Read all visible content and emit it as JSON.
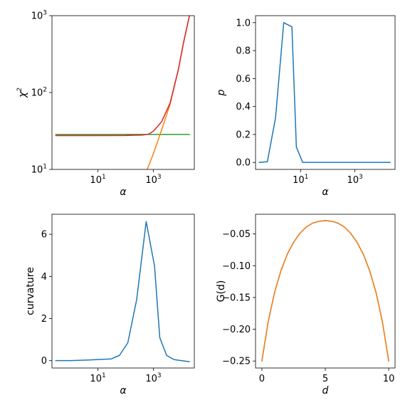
{
  "chart_data": [
    {
      "type": "line",
      "xscale": "log",
      "yscale": "log",
      "xlabel": "α",
      "ylabel": "χ",
      "ylabel_sup": "2",
      "xlim": [
        0.22,
        30000
      ],
      "ylim": [
        10,
        1000
      ],
      "xticks": [
        {
          "v": 10,
          "base": "10",
          "exp": "1"
        },
        {
          "v": 1000,
          "base": "10",
          "exp": "3"
        }
      ],
      "yticks": [
        {
          "v": 10,
          "base": "10",
          "exp": "1"
        },
        {
          "v": 100,
          "base": "10",
          "exp": "2"
        },
        {
          "v": 1000,
          "base": "10",
          "exp": "3"
        }
      ],
      "series": [
        {
          "color": "#2ca02c",
          "x": [
            0.3,
            1,
            10,
            100,
            1000,
            10000,
            20000
          ],
          "y": [
            28.5,
            28.5,
            28.5,
            28.5,
            28.5,
            28.5,
            28.5
          ]
        },
        {
          "color": "#ff7f0e",
          "x": [
            600,
            1000,
            2000,
            4000,
            8000,
            12000,
            20000
          ],
          "y": [
            10,
            16,
            33,
            70,
            200,
            430,
            1000
          ]
        },
        {
          "color": "#d62728",
          "x": [
            0.3,
            1,
            10,
            100,
            200,
            400,
            700,
            1000,
            1500,
            2000,
            4000,
            8000,
            12000,
            20000
          ],
          "y": [
            27.5,
            27.5,
            27.5,
            27.6,
            27.8,
            28,
            28.9,
            31.5,
            37,
            42,
            73,
            200,
            430,
            1000
          ]
        }
      ]
    },
    {
      "type": "line",
      "xscale": "log",
      "yscale": "linear",
      "xlabel": "α",
      "ylabel": "p",
      "xlim": [
        0.22,
        30000
      ],
      "ylim": [
        -0.05,
        1.05
      ],
      "xticks": [
        {
          "v": 10,
          "base": "10",
          "exp": "1"
        },
        {
          "v": 1000,
          "base": "10",
          "exp": "3"
        }
      ],
      "yticks": [
        {
          "v": 0.0,
          "label": "0.0"
        },
        {
          "v": 0.2,
          "label": "0.2"
        },
        {
          "v": 0.4,
          "label": "0.4"
        },
        {
          "v": 0.6,
          "label": "0.6"
        },
        {
          "v": 0.8,
          "label": "0.8"
        },
        {
          "v": 1.0,
          "label": "1.0"
        }
      ],
      "series": [
        {
          "color": "#1f77b4",
          "x": [
            0.3,
            0.6,
            1.2,
            2.4,
            4.8,
            7,
            12,
            100,
            1000,
            20000
          ],
          "y": [
            0.0,
            0.005,
            0.32,
            1.0,
            0.97,
            0.11,
            0.0,
            0.0,
            0.0,
            0.0
          ]
        }
      ]
    },
    {
      "type": "line",
      "xscale": "log",
      "yscale": "linear",
      "xlabel": "α",
      "ylabel": "curvature",
      "xlim": [
        0.22,
        30000
      ],
      "ylim": [
        -0.35,
        6.95
      ],
      "xticks": [
        {
          "v": 10,
          "base": "10",
          "exp": "1"
        },
        {
          "v": 1000,
          "base": "10",
          "exp": "3"
        }
      ],
      "yticks": [
        {
          "v": 0,
          "label": "0"
        },
        {
          "v": 2,
          "label": "2"
        },
        {
          "v": 4,
          "label": "4"
        },
        {
          "v": 6,
          "label": "6"
        }
      ],
      "series": [
        {
          "color": "#1f77b4",
          "x": [
            0.3,
            1,
            3,
            10,
            30,
            60,
            120,
            250,
            550,
            1100,
            1700,
            3000,
            5500,
            10000,
            20000
          ],
          "y": [
            0.0,
            0.0,
            0.02,
            0.05,
            0.08,
            0.25,
            0.85,
            2.9,
            6.6,
            4.5,
            1.1,
            0.25,
            0.05,
            0.0,
            -0.05
          ]
        }
      ]
    },
    {
      "type": "line",
      "xscale": "linear",
      "yscale": "linear",
      "xlabel": "d",
      "ylabel": "G(d)",
      "xlim": [
        -0.5,
        10.5
      ],
      "ylim": [
        -0.261,
        -0.019
      ],
      "xticks": [
        {
          "v": 0,
          "label": "0"
        },
        {
          "v": 5,
          "label": "5"
        },
        {
          "v": 10,
          "label": "10"
        }
      ],
      "yticks": [
        {
          "v": -0.05,
          "label": "−0.05"
        },
        {
          "v": -0.1,
          "label": "−0.10"
        },
        {
          "v": -0.15,
          "label": "−0.15"
        },
        {
          "v": -0.2,
          "label": "−0.20"
        },
        {
          "v": -0.25,
          "label": "−0.25"
        }
      ],
      "series": [
        {
          "color": "#1f77b4",
          "x": [
            0,
            0.5,
            1,
            1.5,
            2,
            2.5,
            3,
            3.5,
            4,
            4.5,
            5,
            5.5,
            6,
            6.5,
            7,
            7.5,
            8,
            8.5,
            9,
            9.5,
            10
          ],
          "y": [
            -0.25,
            -0.188,
            -0.142,
            -0.108,
            -0.082,
            -0.063,
            -0.049,
            -0.039,
            -0.033,
            -0.03,
            -0.029,
            -0.03,
            -0.033,
            -0.039,
            -0.049,
            -0.063,
            -0.082,
            -0.108,
            -0.142,
            -0.188,
            -0.25
          ]
        },
        {
          "color": "#ff7f0e",
          "x": [
            0,
            0.5,
            1,
            1.5,
            2,
            2.5,
            3,
            3.5,
            4,
            4.5,
            5,
            5.5,
            6,
            6.5,
            7,
            7.5,
            8,
            8.5,
            9,
            9.5,
            10
          ],
          "y": [
            -0.25,
            -0.188,
            -0.142,
            -0.108,
            -0.082,
            -0.063,
            -0.049,
            -0.039,
            -0.033,
            -0.03,
            -0.029,
            -0.03,
            -0.033,
            -0.039,
            -0.049,
            -0.063,
            -0.082,
            -0.108,
            -0.142,
            -0.188,
            -0.25
          ]
        }
      ]
    }
  ]
}
